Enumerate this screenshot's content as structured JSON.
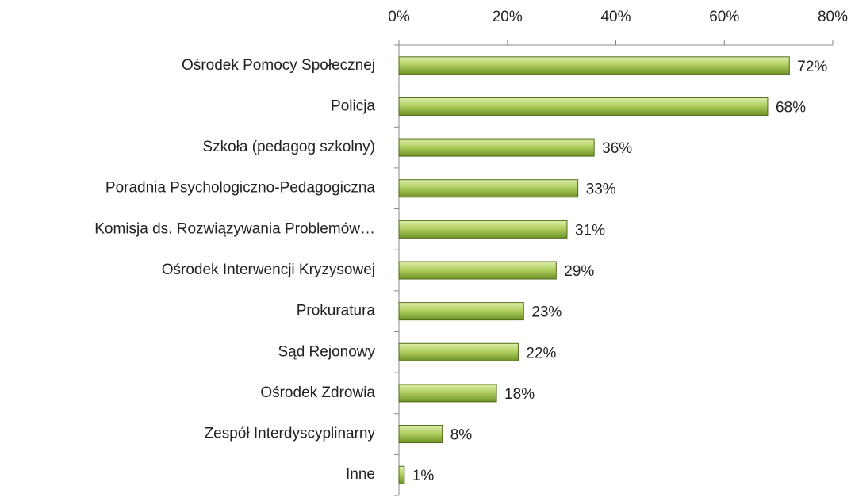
{
  "chart_data": {
    "type": "barh",
    "categories": [
      "Ośrodek Pomocy Społecznej",
      "Policja",
      "Szkoła (pedagog szkolny)",
      "Poradnia Psychologiczno-Pedagogiczna",
      "Komisja ds. Rozwiązywania Problemów…",
      "Ośrodek Interwencji Kryzysowej",
      "Prokuratura",
      "Sąd Rejonowy",
      "Ośrodek Zdrowia",
      "Zespół Interdyscyplinarny",
      "Inne"
    ],
    "values": [
      72,
      68,
      36,
      33,
      31,
      29,
      23,
      22,
      18,
      8,
      1
    ],
    "value_labels": [
      "72%",
      "68%",
      "36%",
      "33%",
      "31%",
      "29%",
      "23%",
      "22%",
      "18%",
      "8%",
      "1%"
    ],
    "color": "#9bbb3c",
    "xlim": [
      0,
      80
    ],
    "xticks": [
      {
        "value": 0,
        "label": "0%"
      },
      {
        "value": 20,
        "label": "20%"
      },
      {
        "value": 40,
        "label": "40%"
      },
      {
        "value": 60,
        "label": "60%"
      },
      {
        "value": 80,
        "label": "80%"
      }
    ],
    "grid": false
  }
}
